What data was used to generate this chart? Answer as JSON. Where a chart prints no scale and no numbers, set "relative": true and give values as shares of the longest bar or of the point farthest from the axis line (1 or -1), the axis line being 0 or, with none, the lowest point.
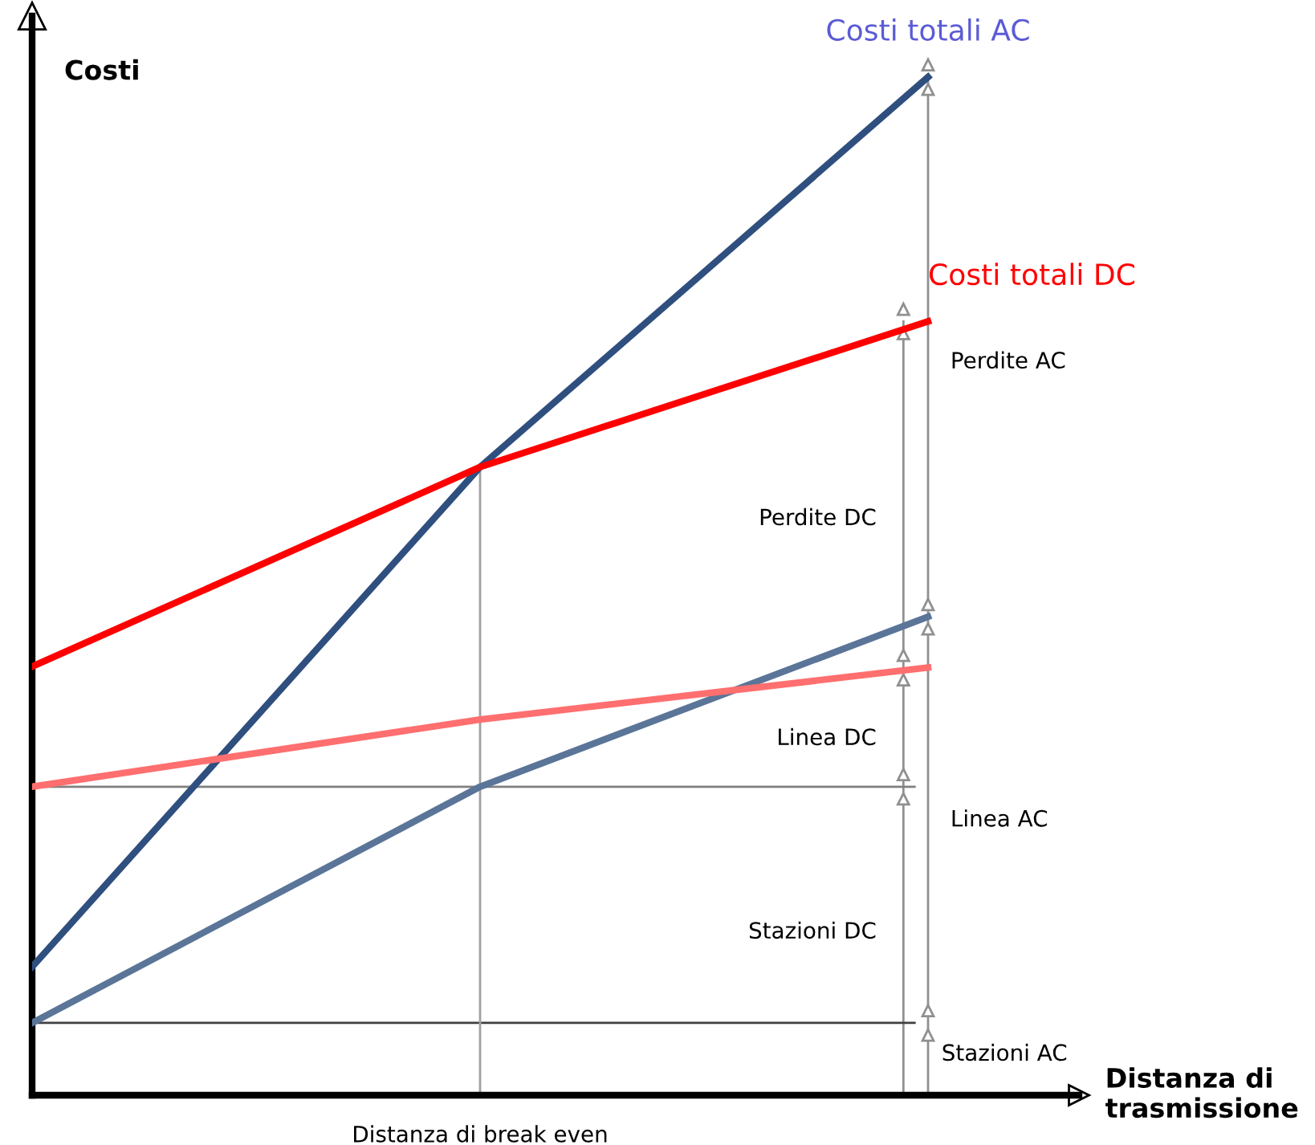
{
  "chart_data": {
    "type": "line",
    "relative": true,
    "ylabel": "Costi",
    "categories": [
      null,
      null,
      null
    ],
    "series": [
      {
        "name": "Costi totali AC",
        "color": "#2f4f7f",
        "values": [
          0.126,
          0.617,
          1
        ]
      },
      {
        "name": "Costi totali DC",
        "color": "#ff0000",
        "values": [
          0.421,
          0.617,
          0.76
        ]
      },
      {
        "color": "#5a7598",
        "values": [
          0.071,
          0.303,
          0.47
        ]
      },
      {
        "color": "#ff6f6f",
        "values": [
          0.303,
          0.369,
          0.42
        ]
      }
    ],
    "ref_lines": [
      {
        "axis": "y",
        "value": 0.303,
        "color": "#808080"
      },
      {
        "axis": "y",
        "value": 0.071,
        "color": "#404040"
      }
    ],
    "annotations": [
      "Distanza di break even",
      "Perdite AC",
      "Perdite DC",
      "Linea DC",
      "Linea AC",
      "Stazioni DC",
      "Stazioni AC",
      "Distanza di trasmissione"
    ],
    "grid": false,
    "marker": "none",
    "line_style": "solid"
  }
}
